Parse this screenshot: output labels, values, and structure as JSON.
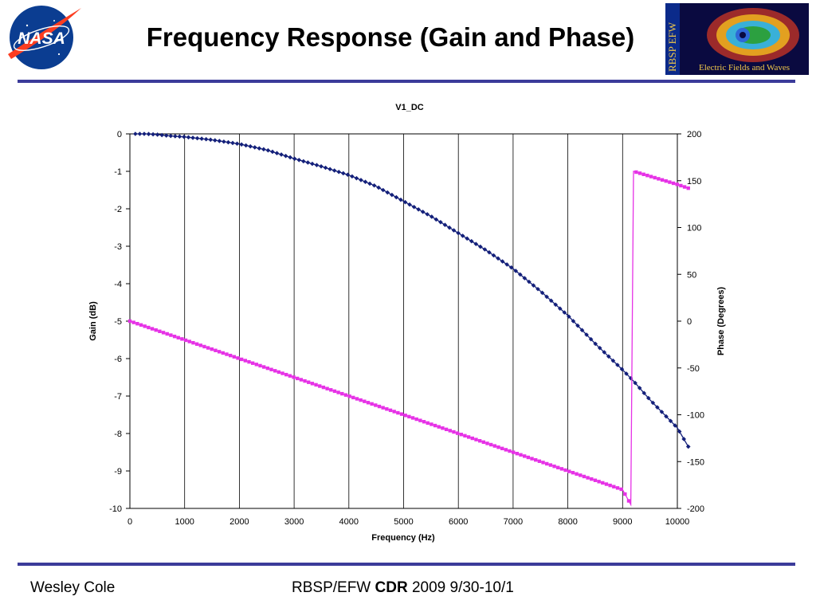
{
  "slide": {
    "title": "Frequency Response (Gain and Phase)",
    "nasa_logo_text": "NASA",
    "efw_logo_title": "RBSP EFW",
    "efw_logo_subtitle": "Electric Fields and Waves"
  },
  "footer": {
    "presenter": "Wesley Cole",
    "mission_prefix": "RBSP/EFW ",
    "review_label": "CDR",
    "dates": " 2009 9/30-10/1"
  },
  "colors": {
    "rule": "#3b3b9a",
    "gain_series": "#14207a",
    "phase_series": "#e632e6"
  },
  "chart_data": {
    "type": "line",
    "title": "V1_DC",
    "xlabel": "Frequency (Hz)",
    "ylabel": "Gain (dB)",
    "y2label": "Phase (Degrees)",
    "xlim": [
      0,
      10000
    ],
    "ylim": [
      -10,
      0
    ],
    "y2lim": [
      -200,
      200
    ],
    "x_ticks": [
      0,
      1000,
      2000,
      3000,
      4000,
      5000,
      6000,
      7000,
      8000,
      9000,
      10000
    ],
    "y_ticks": [
      0,
      -1,
      -2,
      -3,
      -4,
      -5,
      -6,
      -7,
      -8,
      -9,
      -10
    ],
    "y2_ticks": [
      200,
      150,
      100,
      50,
      0,
      -50,
      -100,
      -150,
      -200
    ],
    "grid": "vertical",
    "series": [
      {
        "axis": "left",
        "marker": "diamond",
        "x": [
          100,
          300,
          500,
          700,
          1000,
          1500,
          2000,
          2500,
          3000,
          3500,
          4000,
          4500,
          5000,
          5500,
          6000,
          6500,
          7000,
          7500,
          8000,
          8500,
          9000,
          9200,
          9500,
          10000,
          10200
        ],
        "values": [
          0,
          0,
          -0.02,
          -0.05,
          -0.08,
          -0.16,
          -0.27,
          -0.43,
          -0.66,
          -0.87,
          -1.1,
          -1.4,
          -1.8,
          -2.2,
          -2.65,
          -3.1,
          -3.6,
          -4.2,
          -4.85,
          -5.6,
          -6.3,
          -6.6,
          -7.1,
          -7.85,
          -8.35
        ]
      },
      {
        "axis": "right",
        "marker": "square",
        "x": [
          0,
          1000,
          2000,
          3000,
          4000,
          5000,
          6000,
          7000,
          8000,
          9000,
          9150,
          9200,
          10000,
          10200
        ],
        "values": [
          0,
          -20,
          -40,
          -60,
          -80,
          -100,
          -120,
          -140,
          -160,
          -180,
          -196,
          160,
          146,
          142
        ]
      }
    ]
  }
}
